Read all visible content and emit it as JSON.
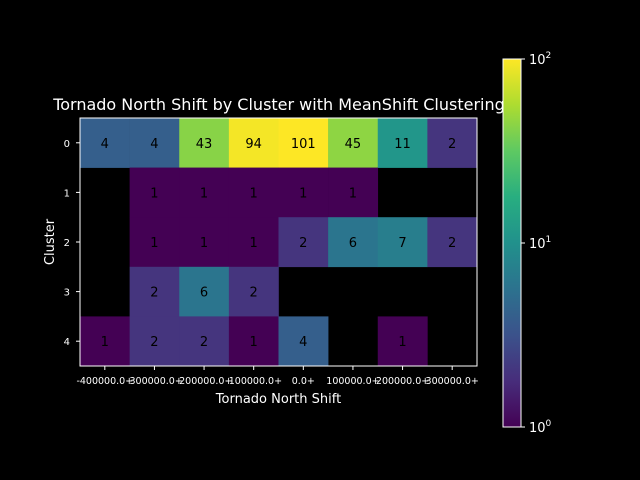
{
  "chart_data": {
    "type": "heatmap",
    "title": "Tornado North Shift by Cluster with MeanShift Clustering",
    "xlabel": "Tornado North Shift",
    "ylabel": "Cluster",
    "x_categories": [
      "-400000.0+",
      "-300000.0+",
      "-200000.0+",
      "-100000.0+",
      "0.0+",
      "100000.0+",
      "200000.0+",
      "300000.0+"
    ],
    "y_categories": [
      "0",
      "1",
      "2",
      "3",
      "4"
    ],
    "values": [
      [
        4,
        4,
        43,
        94,
        101,
        45,
        11,
        2
      ],
      [
        null,
        1,
        1,
        1,
        1,
        1,
        null,
        null
      ],
      [
        null,
        1,
        1,
        1,
        2,
        6,
        7,
        2
      ],
      [
        null,
        2,
        6,
        2,
        null,
        null,
        null,
        null
      ],
      [
        1,
        2,
        2,
        1,
        4,
        null,
        1,
        null
      ]
    ],
    "colorbar": {
      "scale": "log",
      "min": 1,
      "max": 100,
      "ticks": [
        {
          "base": "10",
          "exp": "0",
          "value": 1
        },
        {
          "base": "10",
          "exp": "1",
          "value": 10
        },
        {
          "base": "10",
          "exp": "2",
          "value": 100
        }
      ],
      "colormap": "viridis"
    },
    "colors": {
      "background": "#000000",
      "text": "#ffffff",
      "cell_text": "#000000"
    }
  }
}
